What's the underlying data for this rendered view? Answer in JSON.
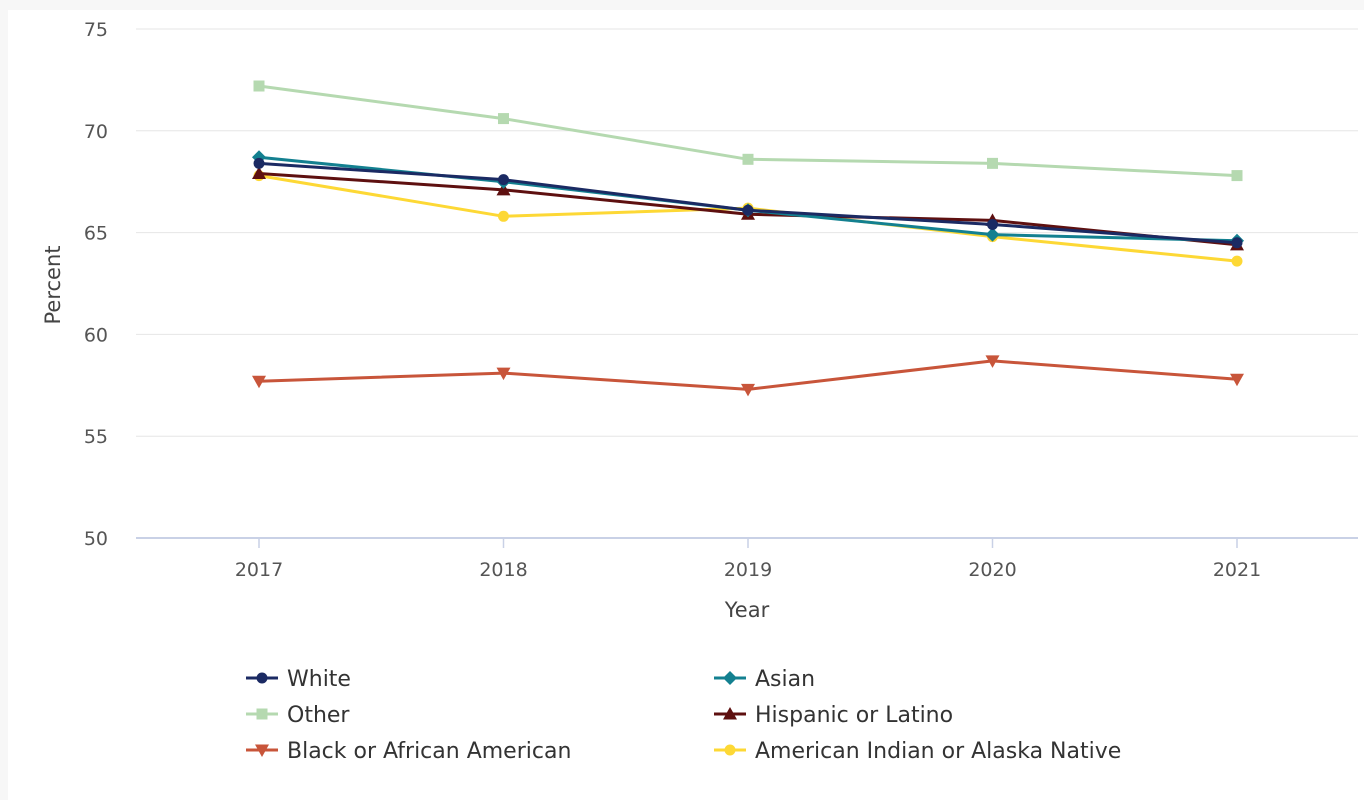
{
  "chart_data": {
    "type": "line",
    "title": "",
    "xlabel": "Year",
    "ylabel": "Percent",
    "x": [
      2017,
      2018,
      2019,
      2020,
      2021
    ],
    "ylim": [
      50,
      75
    ],
    "yticks": [
      50,
      55,
      60,
      65,
      70,
      75
    ],
    "grid": true,
    "legend_position": "bottom",
    "series": [
      {
        "name": "White",
        "color": "#1b2a63",
        "marker": "circle",
        "values": [
          68.4,
          67.6,
          66.1,
          65.4,
          64.5
        ]
      },
      {
        "name": "Asian",
        "color": "#138090",
        "marker": "diamond",
        "values": [
          68.7,
          67.5,
          66.1,
          64.9,
          64.6
        ]
      },
      {
        "name": "Other",
        "color": "#b5d9b0",
        "marker": "square",
        "values": [
          72.2,
          70.6,
          68.6,
          68.4,
          67.8
        ]
      },
      {
        "name": "Hispanic or Latino",
        "color": "#5e1010",
        "marker": "triangle-up",
        "values": [
          67.9,
          67.1,
          65.9,
          65.6,
          64.4
        ]
      },
      {
        "name": "Black or African American",
        "color": "#c8553a",
        "marker": "triangle-down",
        "values": [
          57.7,
          58.1,
          57.3,
          58.7,
          57.8
        ]
      },
      {
        "name": "American Indian or Alaska Native",
        "color": "#fdd835",
        "marker": "circle",
        "values": [
          67.8,
          65.8,
          66.2,
          64.8,
          63.6
        ]
      }
    ]
  }
}
